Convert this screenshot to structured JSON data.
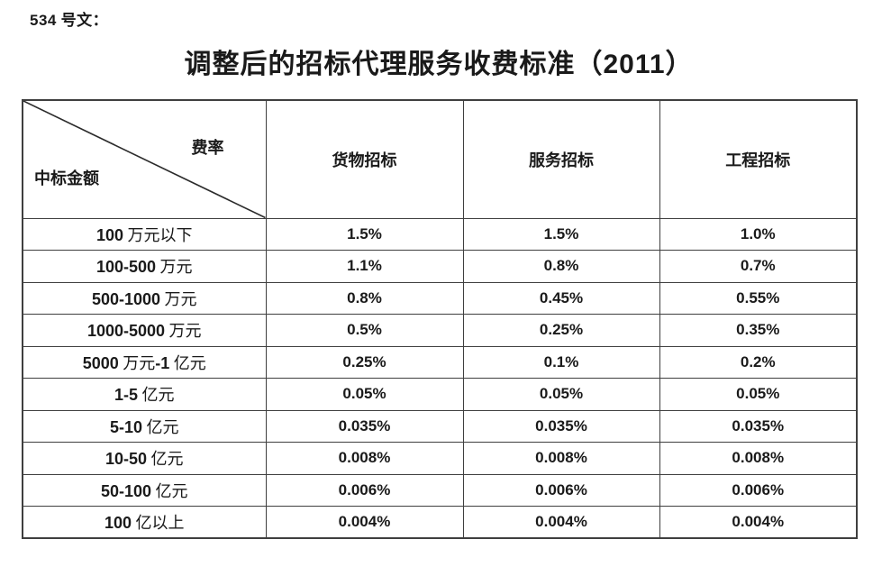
{
  "doc": {
    "number_line": "534 号文："
  },
  "title": {
    "text": "调整后的招标代理服务收费标准（2011）"
  },
  "table": {
    "corner": {
      "top_right": "费率",
      "bottom_left": "中标金额"
    },
    "columns": [
      "货物招标",
      "服务招标",
      "工程招标"
    ],
    "rows": [
      {
        "label": "100 万元以下",
        "values": [
          "1.5%",
          "1.5%",
          "1.0%"
        ]
      },
      {
        "label": "100-500 万元",
        "values": [
          "1.1%",
          "0.8%",
          "0.7%"
        ]
      },
      {
        "label": "500-1000 万元",
        "values": [
          "0.8%",
          "0.45%",
          "0.55%"
        ]
      },
      {
        "label": "1000-5000 万元",
        "values": [
          "0.5%",
          "0.25%",
          "0.35%"
        ]
      },
      {
        "label": "5000 万元-1 亿元",
        "values": [
          "0.25%",
          "0.1%",
          "0.2%"
        ]
      },
      {
        "label": "1-5 亿元",
        "values": [
          "0.05%",
          "0.05%",
          "0.05%"
        ]
      },
      {
        "label": "5-10 亿元",
        "values": [
          "0.035%",
          "0.035%",
          "0.035%"
        ]
      },
      {
        "label": "10-50 亿元",
        "values": [
          "0.008%",
          "0.008%",
          "0.008%"
        ]
      },
      {
        "label": "50-100 亿元",
        "values": [
          "0.006%",
          "0.006%",
          "0.006%"
        ]
      },
      {
        "label": "100 亿以上",
        "values": [
          "0.004%",
          "0.004%",
          "0.004%"
        ]
      }
    ]
  },
  "colors": {
    "text": "#1a1a1a",
    "border": "#3f3f3f",
    "background": "#ffffff"
  }
}
